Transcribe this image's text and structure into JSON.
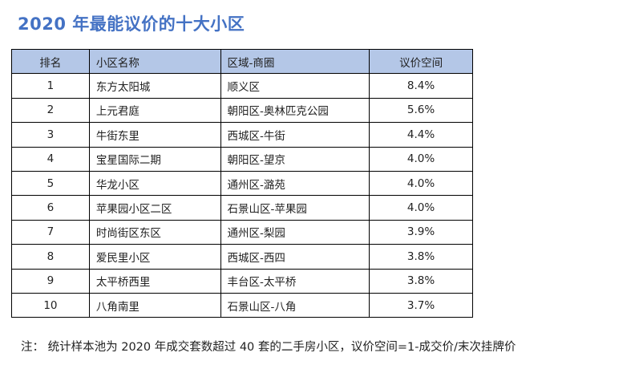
{
  "title": "2020 年最能议价的十大小区",
  "headers": [
    "排名",
    "小区名称",
    "区域-商圈",
    "议价空间"
  ],
  "rows": [
    [
      "1",
      "东方太阳城",
      "顺义区",
      "8.4%"
    ],
    [
      "2",
      "上元君庭",
      "朝阳区-奥林匹克公园",
      "5.6%"
    ],
    [
      "3",
      "牛街东里",
      "西城区-牛街",
      "4.4%"
    ],
    [
      "4",
      "宝星国际二期",
      "朝阳区-望京",
      "4.0%"
    ],
    [
      "5",
      "华龙小区",
      "通州区-潞苑",
      "4.0%"
    ],
    [
      "6",
      "苹果园小区二区",
      "石景山区-苹果园",
      "4.0%"
    ],
    [
      "7",
      "时尚街区东区",
      "通州区-梨园",
      "3.9%"
    ],
    [
      "8",
      "爱民里小区",
      "西城区-西四",
      "3.8%"
    ],
    [
      "9",
      "太平桥西里",
      "丰台区-太平桥",
      "3.8%"
    ],
    [
      "10",
      "八角南里",
      "石景山区-八角",
      "3.7%"
    ]
  ],
  "note": "注：  统计样本池为 2020 年成交套数超过 40 套的二手房小区，议价空间=1-成交价/末次挂牌价",
  "colors": {
    "title": "#4472c4",
    "header_bg": "#b4c7e7"
  }
}
